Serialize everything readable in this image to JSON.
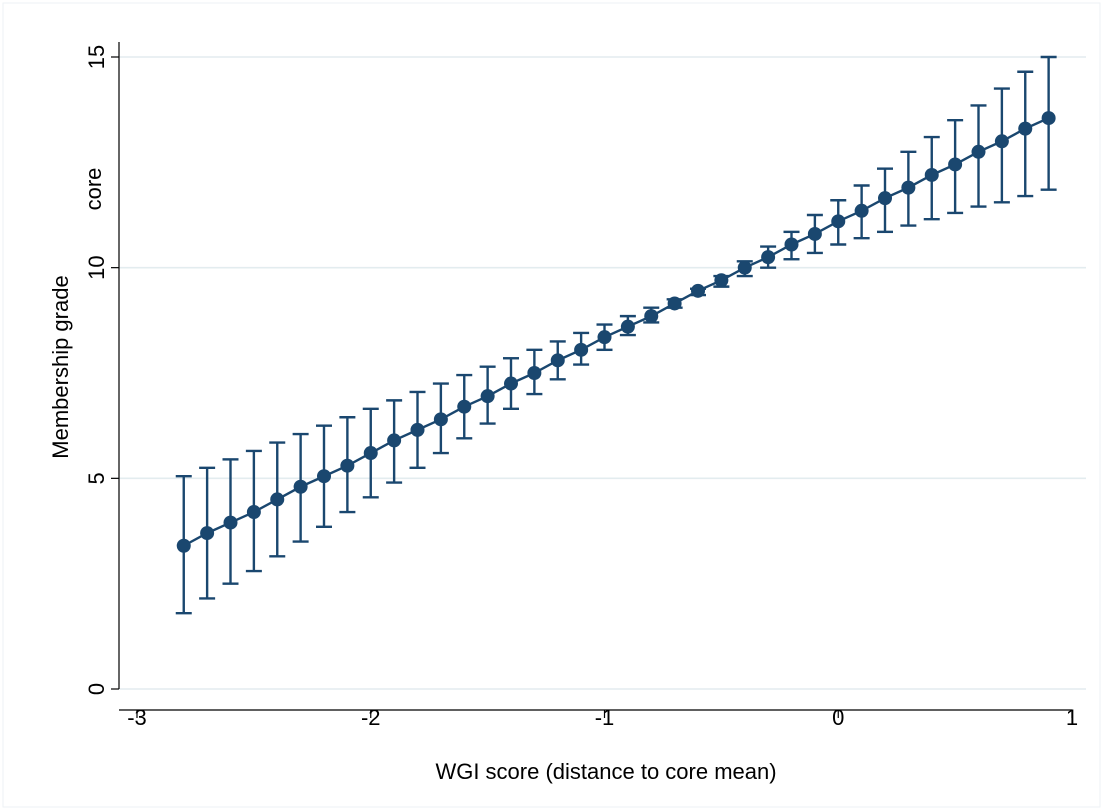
{
  "chart_data": {
    "type": "line",
    "title": "",
    "xlabel": "WGI score (distance to core mean)",
    "ylabel": "Membership grade",
    "ylabel_annotation": "core",
    "xlim": [
      -3,
      1
    ],
    "ylim": [
      0,
      15
    ],
    "xticks": [
      -3,
      -2,
      -1,
      0,
      1
    ],
    "xtick_labels": [
      "-3",
      "-2",
      "-1",
      "0",
      "1"
    ],
    "yticks": [
      0,
      5,
      10,
      15
    ],
    "ytick_labels": [
      "0",
      "5",
      "10",
      "15"
    ],
    "grid": true,
    "legend": "none",
    "colors": {
      "marker": "#1a476f",
      "line": "#1a476f",
      "grid": "#e3ecef"
    },
    "series": [
      {
        "x": [
          -2.8,
          -2.7,
          -2.6,
          -2.5,
          -2.4,
          -2.3,
          -2.2,
          -2.1,
          -2.0,
          -1.9,
          -1.8,
          -1.7,
          -1.6,
          -1.5,
          -1.4,
          -1.3,
          -1.2,
          -1.1,
          -1.0,
          -0.9,
          -0.8,
          -0.7,
          -0.6,
          -0.5,
          -0.4,
          -0.3,
          -0.2,
          -0.1,
          0.0,
          0.1,
          0.2,
          0.3,
          0.4,
          0.5,
          0.6,
          0.7,
          0.8,
          0.9
        ],
        "y": [
          3.4,
          3.7,
          3.95,
          4.2,
          4.5,
          4.8,
          5.05,
          5.3,
          5.6,
          5.9,
          6.15,
          6.4,
          6.7,
          6.95,
          7.25,
          7.5,
          7.8,
          8.05,
          8.35,
          8.6,
          8.85,
          9.15,
          9.45,
          9.7,
          10.0,
          10.25,
          10.55,
          10.8,
          11.1,
          11.35,
          11.65,
          11.9,
          12.2,
          12.45,
          12.75,
          13.0,
          13.3,
          13.55
        ],
        "lower": [
          1.8,
          2.15,
          2.5,
          2.8,
          3.15,
          3.5,
          3.85,
          4.2,
          4.55,
          4.9,
          5.25,
          5.6,
          5.95,
          6.3,
          6.65,
          7.0,
          7.35,
          7.7,
          8.05,
          8.4,
          8.7,
          9.05,
          9.35,
          9.55,
          9.8,
          10.0,
          10.2,
          10.35,
          10.55,
          10.7,
          10.85,
          11.0,
          11.15,
          11.3,
          11.45,
          11.55,
          11.7,
          11.85
        ],
        "upper": [
          5.05,
          5.25,
          5.45,
          5.65,
          5.85,
          6.05,
          6.25,
          6.45,
          6.65,
          6.85,
          7.05,
          7.25,
          7.45,
          7.65,
          7.85,
          8.05,
          8.25,
          8.45,
          8.65,
          8.85,
          9.05,
          9.25,
          9.5,
          9.8,
          10.15,
          10.5,
          10.85,
          11.25,
          11.6,
          11.95,
          12.35,
          12.75,
          13.1,
          13.5,
          13.85,
          14.25,
          14.65,
          15.0
        ]
      }
    ]
  }
}
